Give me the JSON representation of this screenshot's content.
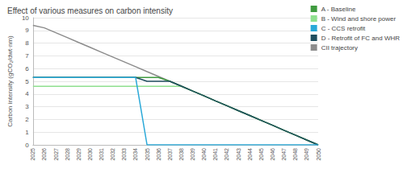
{
  "chart_data": {
    "type": "line",
    "title": "Effect of various measures on carbon intensity",
    "y_label": "Carbon intensity (gCO₂/dwt·nm)",
    "categories": [
      "2025",
      "2026",
      "2027",
      "2028",
      "2029",
      "2030",
      "2031",
      "2032",
      "2033",
      "2034",
      "2035",
      "2036",
      "2037",
      "2038",
      "2039",
      "2040",
      "2041",
      "2042",
      "2043",
      "2044",
      "2045",
      "2046",
      "2047",
      "2048",
      "2049",
      "2050"
    ],
    "series": [
      {
        "name": "A - Baseline",
        "color": "#3f9b3f",
        "values": [
          5.3,
          5.3,
          5.3,
          5.3,
          5.3,
          5.3,
          5.3,
          5.3,
          5.3,
          5.3,
          5.3,
          5.3,
          5.0,
          4.62,
          4.23,
          3.85,
          3.46,
          3.08,
          2.69,
          2.31,
          1.92,
          1.54,
          1.15,
          0.77,
          0.38,
          0
        ]
      },
      {
        "name": "B - Wind and shore power",
        "color": "#8fe08f",
        "values": [
          4.6,
          4.6,
          4.6,
          4.6,
          4.6,
          4.6,
          4.6,
          4.6,
          4.6,
          4.6,
          4.6,
          4.6,
          4.6,
          4.6,
          4.23,
          3.85,
          3.46,
          3.08,
          2.69,
          2.31,
          1.92,
          1.54,
          1.15,
          0.77,
          0.38,
          0
        ]
      },
      {
        "name": "C - CCS retrofit",
        "color": "#29a8d8",
        "values": [
          5.3,
          5.3,
          5.3,
          5.3,
          5.3,
          5.3,
          5.3,
          5.3,
          5.3,
          5.3,
          0,
          0,
          0,
          0,
          0,
          0,
          0,
          0,
          0,
          0,
          0,
          0,
          0,
          0,
          0,
          0
        ]
      },
      {
        "name": "D - Retrofit of FC and WHR",
        "color": "#1f4e5f",
        "values": [
          5.3,
          5.3,
          5.3,
          5.3,
          5.3,
          5.3,
          5.3,
          5.3,
          5.3,
          5.3,
          5.0,
          5.0,
          5.0,
          4.62,
          4.23,
          3.85,
          3.46,
          3.08,
          2.69,
          2.31,
          1.92,
          1.54,
          1.15,
          0.77,
          0.38,
          0
        ]
      },
      {
        "name": "CII trajectory",
        "color": "#8c8c8c",
        "values": [
          9.4,
          9.2,
          8.82,
          8.44,
          8.05,
          7.67,
          7.29,
          6.91,
          6.53,
          6.15,
          5.76,
          5.38,
          5.0,
          4.62,
          4.23,
          3.85,
          3.46,
          3.08,
          2.69,
          2.31,
          1.92,
          1.54,
          1.15,
          0.77,
          0.38,
          0
        ]
      }
    ],
    "ylim": [
      0,
      10
    ],
    "yticks": [
      0,
      1,
      2,
      3,
      4,
      5,
      6,
      7,
      8,
      9,
      10
    ],
    "grid": true,
    "legend": "top-right"
  }
}
